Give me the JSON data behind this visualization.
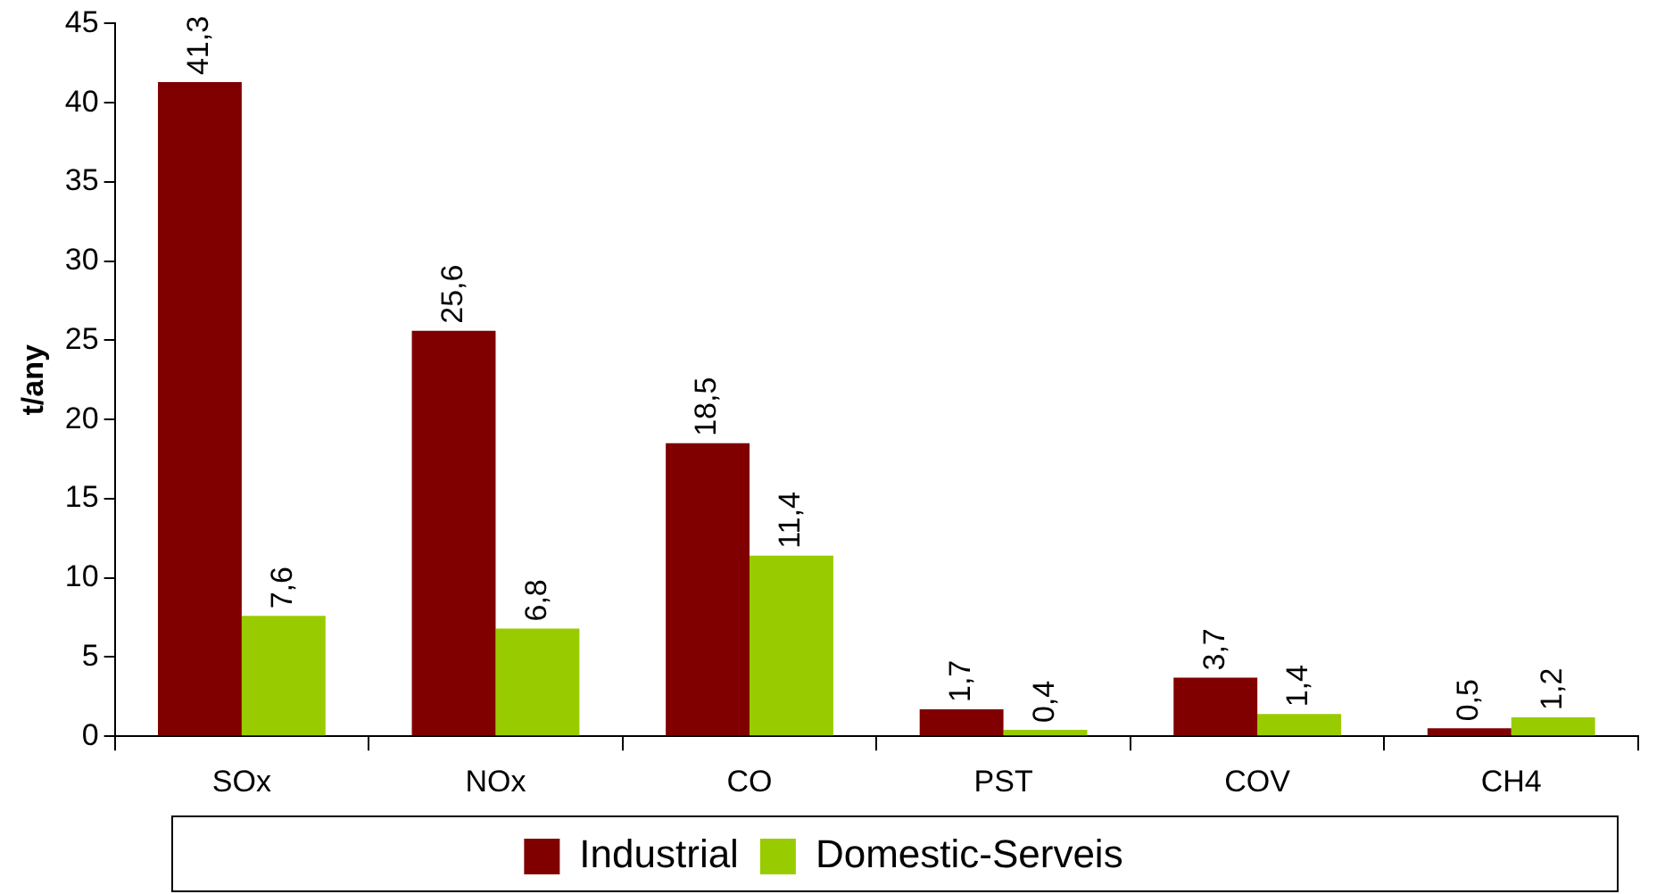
{
  "chart_data": {
    "type": "bar",
    "ylabel": "t/any",
    "categories": [
      "SOx",
      "NOx",
      "CO",
      "PST",
      "COV",
      "CH4"
    ],
    "series": [
      {
        "name": "Industrial",
        "color": "#800000",
        "values": [
          41.3,
          25.6,
          18.5,
          1.7,
          3.7,
          0.5
        ],
        "value_labels": [
          "41,3",
          "25,6",
          "18,5",
          "1,7",
          "3,7",
          "0,5"
        ]
      },
      {
        "name": "Domestic-Serveis",
        "color": "#99cc00",
        "values": [
          7.6,
          6.8,
          11.4,
          0.4,
          1.4,
          1.2
        ],
        "value_labels": [
          "7,6",
          "6,8",
          "11,4",
          "0,4",
          "1,4",
          "1,2"
        ]
      }
    ],
    "ylim": [
      0,
      45
    ],
    "yticks": [
      0,
      5,
      10,
      15,
      20,
      25,
      30,
      35,
      40,
      45
    ],
    "grid": false,
    "legend": "bottom"
  }
}
